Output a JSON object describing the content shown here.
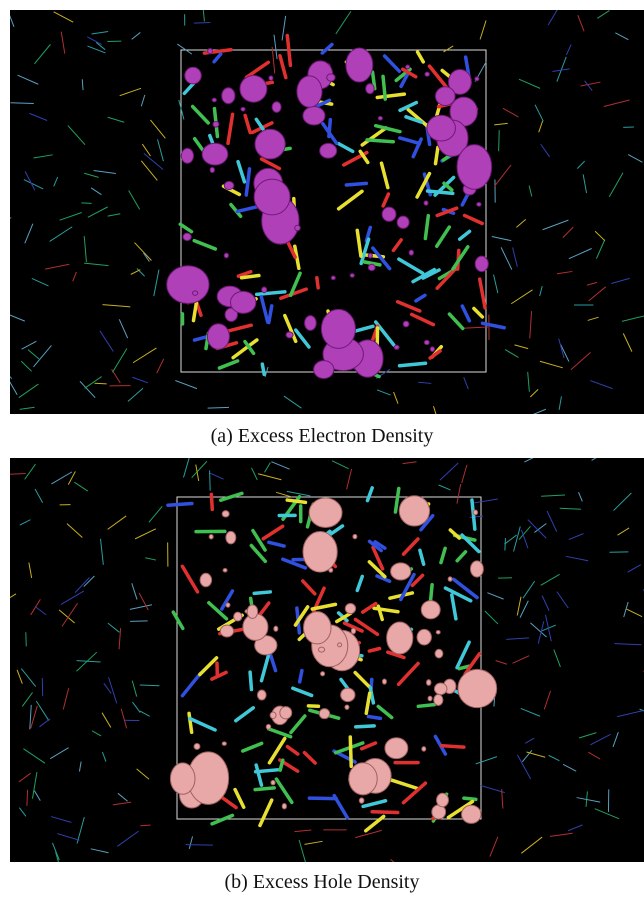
{
  "figure": {
    "panels": [
      {
        "caption": "(a) Excess Electron Density"
      },
      {
        "caption": "(b) Excess Hole Density"
      }
    ]
  }
}
